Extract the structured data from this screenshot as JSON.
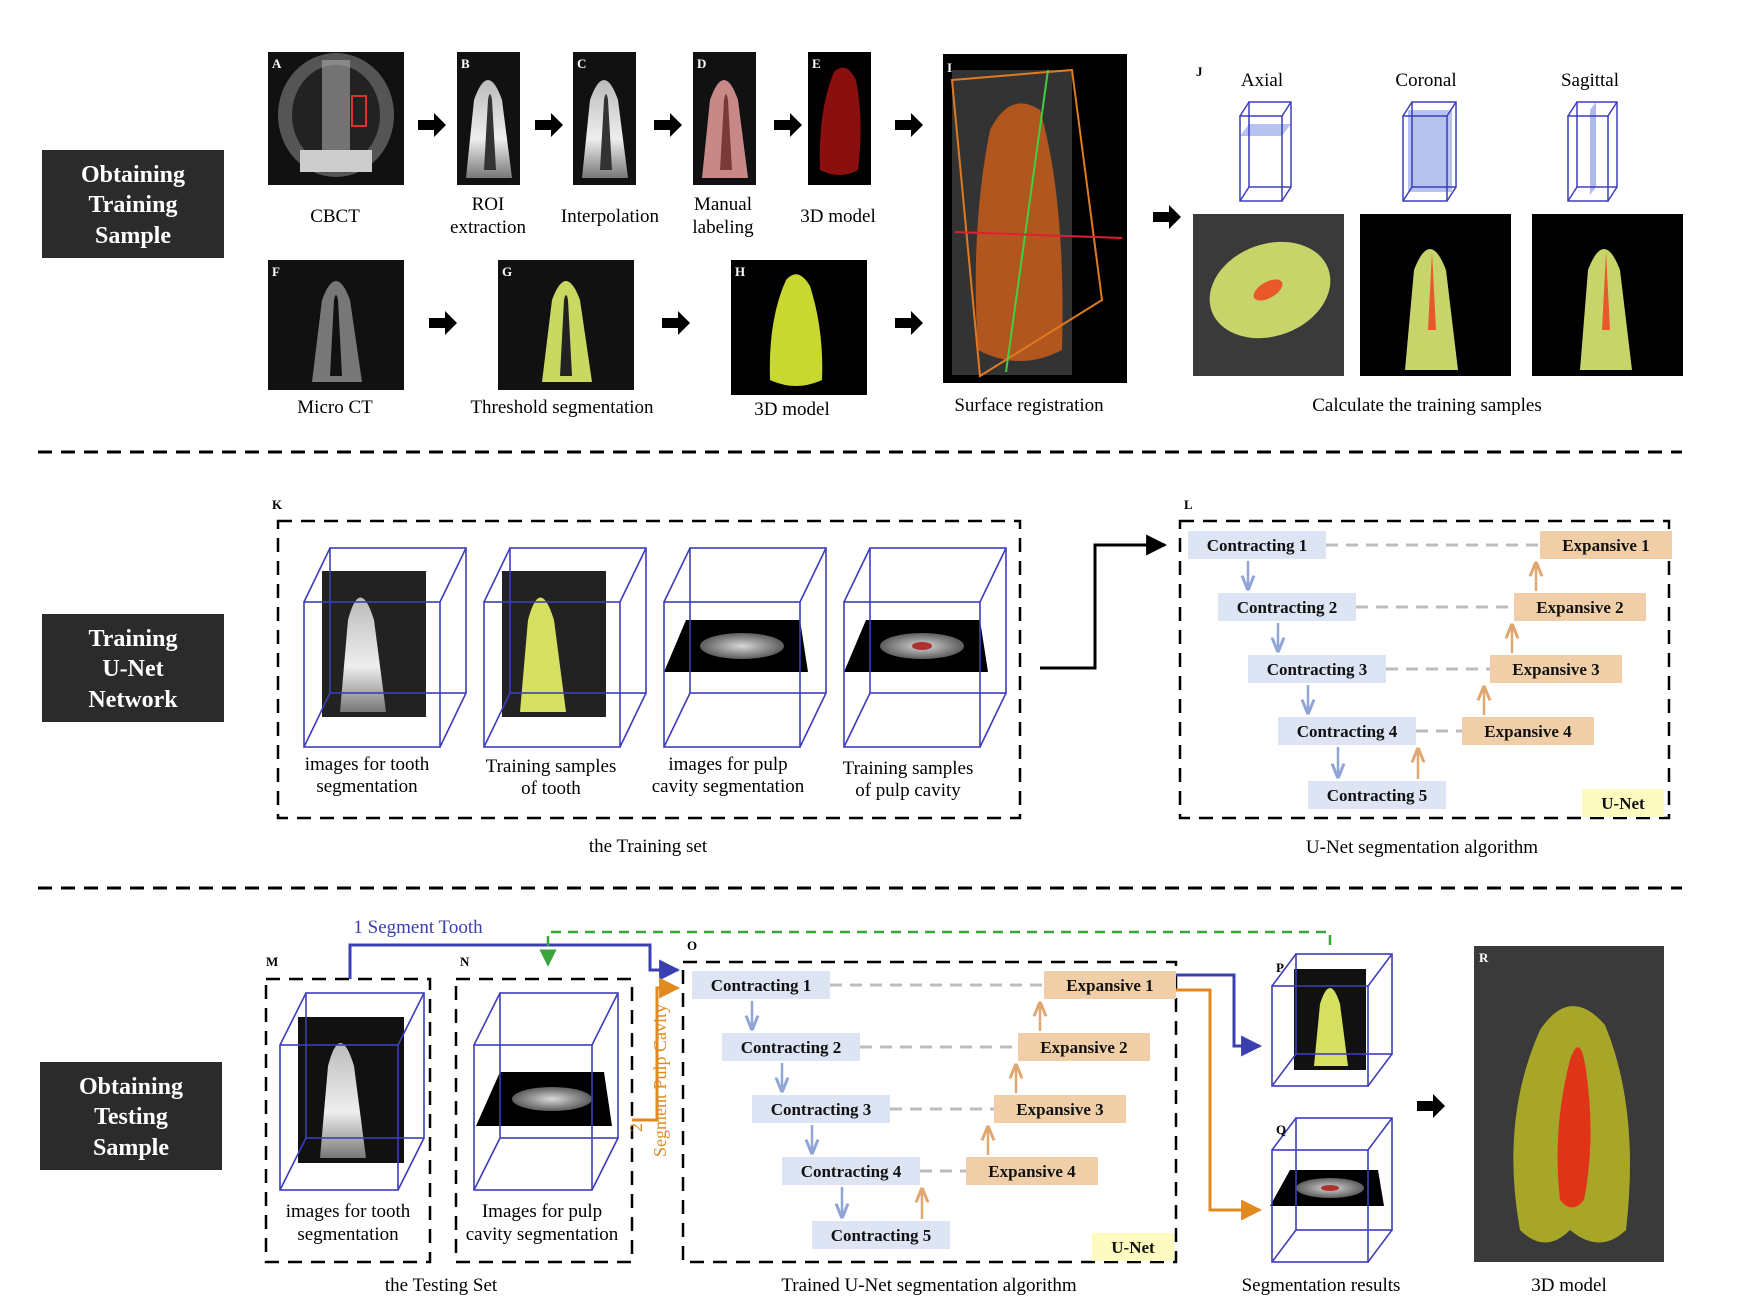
{
  "sections": {
    "obtaining_training": "Obtaining Training Sample",
    "training_unet": "Training U-Net Network",
    "obtaining_testing": "Obtaining Testing Sample"
  },
  "panel_letters": [
    "A",
    "B",
    "C",
    "D",
    "E",
    "F",
    "G",
    "H",
    "I",
    "J",
    "K",
    "L",
    "M",
    "N",
    "O",
    "P",
    "Q",
    "R"
  ],
  "row1": {
    "cbct": "CBCT",
    "roi": [
      "ROI",
      "extraction"
    ],
    "interpolation": "Interpolation",
    "manual": [
      "Manual",
      "labeling"
    ],
    "model3d": "3D model",
    "surface": "Surface registration",
    "axial": "Axial",
    "coronal": "Coronal",
    "sagittal": "Sagittal",
    "calc": "Calculate the training samples"
  },
  "row2": {
    "microct": "Micro CT",
    "threshold": "Threshold segmentation",
    "model3d": "3D model"
  },
  "training_set": {
    "items": [
      [
        "images for tooth",
        "segmentation"
      ],
      [
        "Training samples",
        "of tooth"
      ],
      [
        "images for pulp",
        "cavity segmentation"
      ],
      [
        "Training samples",
        "of pulp cavity"
      ]
    ],
    "caption": "the Training set"
  },
  "unet": {
    "contracting": [
      "Contracting 1",
      "Contracting 2",
      "Contracting 3",
      "Contracting 4",
      "Contracting 5"
    ],
    "expansive": [
      "Expansive 1",
      "Expansive 2",
      "Expansive 3",
      "Expansive 4"
    ],
    "badge": "U-Net",
    "caption_train": "U-Net segmentation algorithm",
    "caption_test": "Trained U-Net segmentation algorithm"
  },
  "testing": {
    "step1": "1 Segment Tooth",
    "step2_num": "2",
    "step2": "Segment Pulp Cavity",
    "tooth_imgs": [
      "images for tooth",
      "segmentation"
    ],
    "pulp_imgs": [
      "Images for pulp",
      "cavity segmentation"
    ],
    "set_caption": "the Testing Set",
    "results": "Segmentation results",
    "model3d": "3D model"
  },
  "colors": {
    "dark_box": "#2b2b2b",
    "contract_fill": "#dde4f4",
    "contract_arrow": "#8ea5d6",
    "expand_fill": "#f0cfa8",
    "expand_arrow": "#e0a870",
    "badge_fill": "#fdfbbf",
    "blue_line": "#3a3fb0",
    "orange_line": "#e08a20",
    "green_dash": "#3aa33a",
    "cube_blue": "#3d3dbb"
  }
}
